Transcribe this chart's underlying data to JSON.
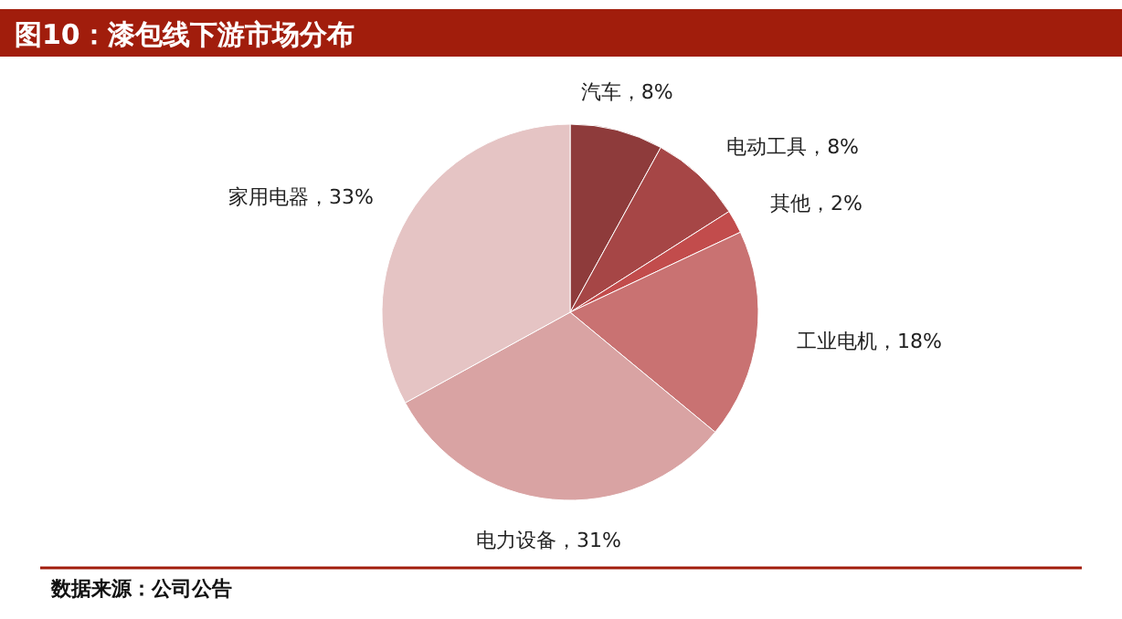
{
  "chart_data": {
    "type": "pie",
    "title": "图10：漆包线下游市场分布",
    "categories": [
      "汽车",
      "电动工具",
      "其他",
      "工业电机",
      "电力设备",
      "家用电器"
    ],
    "values": [
      8,
      8,
      2,
      18,
      31,
      33
    ],
    "colors": [
      "#8e3b3b",
      "#a64646",
      "#c24c4c",
      "#c97272",
      "#d9a3a3",
      "#e5c4c4"
    ],
    "value_labels": [
      "，8%",
      "，8%",
      "，2%",
      "，18%",
      "，31%",
      "，33%"
    ],
    "annotations": [
      "数据来源：公司公告"
    ]
  }
}
